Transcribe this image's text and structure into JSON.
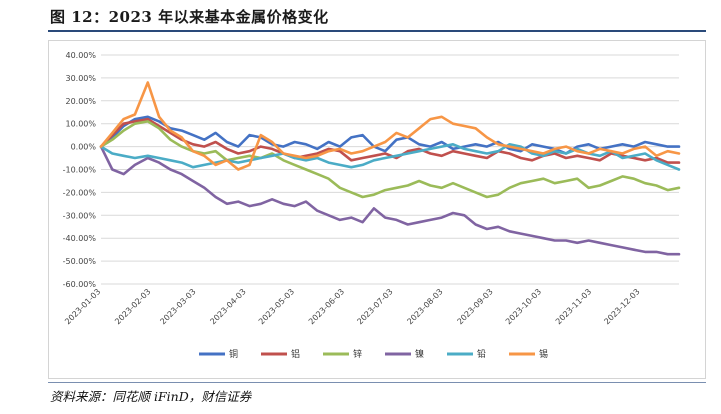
{
  "figure": {
    "title": "图 12：2023 年以来基本金属价格变化",
    "source": "资料来源：同花顺 iFinD，财信证券"
  },
  "colors": {
    "copper": "#4472C4",
    "aluminum": "#C0504D",
    "zinc": "#9BBB59",
    "nickel": "#8064A2",
    "lead": "#4BACC6",
    "tin": "#F79646",
    "grid": "#d9d9d9",
    "title_rule": "#2a4a7a"
  },
  "chart_data": {
    "type": "line",
    "xlabel": "",
    "ylabel": "",
    "ylim": [
      -60,
      40
    ],
    "y_ticks": [
      "40.00%",
      "30.00%",
      "20.00%",
      "10.00%",
      "0.00%",
      "-10.00%",
      "-20.00%",
      "-30.00%",
      "-40.00%",
      "-50.00%",
      "-60.00%"
    ],
    "x_ticks": [
      "2023-01-03",
      "2023-02-03",
      "2023-03-03",
      "2023-04-03",
      "2023-05-03",
      "2023-06-03",
      "2023-07-03",
      "2023-08-03",
      "2023-09-03",
      "2023-10-03",
      "2023-11-03",
      "2023-12-03"
    ],
    "grid": "horizontal",
    "legend_position": "bottom",
    "x": [
      "2023-01-03",
      "2023-01-10",
      "2023-01-17",
      "2023-01-24",
      "2023-02-01",
      "2023-02-08",
      "2023-02-15",
      "2023-02-22",
      "2023-03-01",
      "2023-03-08",
      "2023-03-15",
      "2023-03-22",
      "2023-03-29",
      "2023-04-05",
      "2023-04-12",
      "2023-04-19",
      "2023-04-26",
      "2023-05-03",
      "2023-05-10",
      "2023-05-17",
      "2023-05-24",
      "2023-05-31",
      "2023-06-07",
      "2023-06-14",
      "2023-06-21",
      "2023-06-28",
      "2023-07-05",
      "2023-07-12",
      "2023-07-19",
      "2023-07-26",
      "2023-08-02",
      "2023-08-09",
      "2023-08-16",
      "2023-08-23",
      "2023-08-30",
      "2023-09-06",
      "2023-09-13",
      "2023-09-20",
      "2023-09-27",
      "2023-10-04",
      "2023-10-11",
      "2023-10-18",
      "2023-10-25",
      "2023-11-01",
      "2023-11-08",
      "2023-11-15",
      "2023-11-22",
      "2023-11-29",
      "2023-12-06",
      "2023-12-13",
      "2023-12-20",
      "2023-12-27"
    ],
    "series": [
      {
        "name": "铜",
        "color": "#4472C4",
        "values": [
          0,
          4,
          9,
          12,
          13,
          11,
          8,
          7,
          5,
          3,
          6,
          2,
          0,
          5,
          4,
          1,
          0,
          2,
          1,
          -1,
          2,
          0,
          4,
          5,
          0,
          -2,
          3,
          4,
          1,
          0,
          2,
          -1,
          0,
          1,
          0,
          2,
          -1,
          -2,
          1,
          0,
          -1,
          -3,
          0,
          1,
          -1,
          0,
          1,
          0,
          2,
          1,
          0,
          0
        ]
      },
      {
        "name": "铝",
        "color": "#C0504D",
        "values": [
          0,
          5,
          10,
          11,
          12,
          9,
          6,
          3,
          1,
          0,
          2,
          -1,
          -3,
          -2,
          0,
          -1,
          -3,
          -5,
          -4,
          -3,
          -1,
          -2,
          -6,
          -5,
          -4,
          -3,
          -5,
          -2,
          -1,
          -3,
          -4,
          -2,
          -3,
          -4,
          -5,
          -2,
          -3,
          -5,
          -6,
          -4,
          -3,
          -5,
          -4,
          -5,
          -6,
          -3,
          -4,
          -5,
          -6,
          -5,
          -7,
          -7
        ]
      },
      {
        "name": "锌",
        "color": "#9BBB59",
        "values": [
          0,
          3,
          7,
          10,
          11,
          8,
          3,
          0,
          -2,
          -3,
          -2,
          -6,
          -5,
          -4,
          -5,
          -3,
          -6,
          -8,
          -10,
          -12,
          -14,
          -18,
          -20,
          -22,
          -21,
          -19,
          -18,
          -17,
          -15,
          -17,
          -18,
          -16,
          -18,
          -20,
          -22,
          -21,
          -18,
          -16,
          -15,
          -14,
          -16,
          -15,
          -14,
          -18,
          -17,
          -15,
          -13,
          -14,
          -16,
          -17,
          -19,
          -18
        ]
      },
      {
        "name": "镍",
        "color": "#8064A2",
        "values": [
          0,
          -10,
          -12,
          -8,
          -5,
          -7,
          -10,
          -12,
          -15,
          -18,
          -22,
          -25,
          -24,
          -26,
          -25,
          -23,
          -25,
          -26,
          -24,
          -28,
          -30,
          -32,
          -31,
          -33,
          -27,
          -31,
          -32,
          -34,
          -33,
          -32,
          -31,
          -29,
          -30,
          -34,
          -36,
          -35,
          -37,
          -38,
          -39,
          -40,
          -41,
          -41,
          -42,
          -41,
          -42,
          -43,
          -44,
          -45,
          -46,
          -46,
          -47,
          -47
        ]
      },
      {
        "name": "铅",
        "color": "#4BACC6",
        "values": [
          0,
          -3,
          -4,
          -5,
          -4,
          -5,
          -6,
          -7,
          -9,
          -8,
          -7,
          -6,
          -7,
          -6,
          -5,
          -4,
          -3,
          -5,
          -6,
          -5,
          -7,
          -8,
          -9,
          -8,
          -6,
          -5,
          -4,
          -3,
          -2,
          -1,
          0,
          1,
          -1,
          -2,
          -3,
          -2,
          1,
          0,
          -3,
          -4,
          -2,
          -3,
          -1,
          -3,
          -4,
          -2,
          -5,
          -4,
          -3,
          -6,
          -8,
          -10
        ]
      },
      {
        "name": "锡",
        "color": "#F79646",
        "values": [
          0,
          6,
          12,
          14,
          28,
          13,
          7,
          4,
          -2,
          -4,
          -8,
          -6,
          -10,
          -8,
          5,
          2,
          -3,
          -4,
          -5,
          -4,
          -2,
          -1,
          -3,
          -2,
          0,
          2,
          6,
          4,
          8,
          12,
          13,
          10,
          9,
          8,
          4,
          1,
          0,
          -1,
          -2,
          -3,
          -1,
          0,
          -2,
          -3,
          -1,
          -2,
          -3,
          -1,
          0,
          -4,
          -2,
          -3
        ]
      }
    ]
  }
}
